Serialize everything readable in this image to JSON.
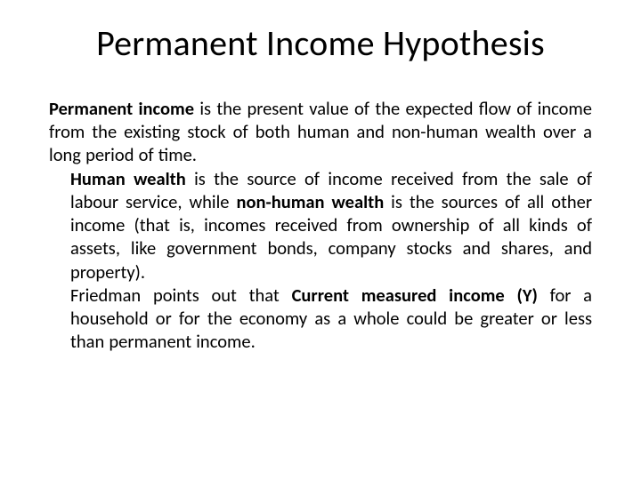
{
  "title": "Permanent Income Hypothesis",
  "bold": {
    "permanent_income": "Permanent income",
    "human_wealth": "Human wealth",
    "non_human_wealth": "non-human wealth",
    "current_measured_income": "Current measured income (Y)"
  },
  "text": {
    "p1a": " is the present value of the expected flow of income from the existing stock of both human and non-human wealth over a long period of time.",
    "p2a": " is the source of income received from the sale of labour service, while ",
    "p2b": " is the sources of all other income (that is, incomes received from ownership of all kinds of assets, like government bonds, company stocks and shares, and property).",
    "p3a": "Friedman points out that ",
    "p3b": " for a household or for the economy as a whole could be greater or less than permanent  income."
  },
  "style": {
    "background_color": "#ffffff",
    "text_color": "#000000",
    "title_fontsize": 40,
    "body_fontsize": 20.5,
    "font_family": "Calibri",
    "line_height": 1.28,
    "body_align": "justify"
  }
}
